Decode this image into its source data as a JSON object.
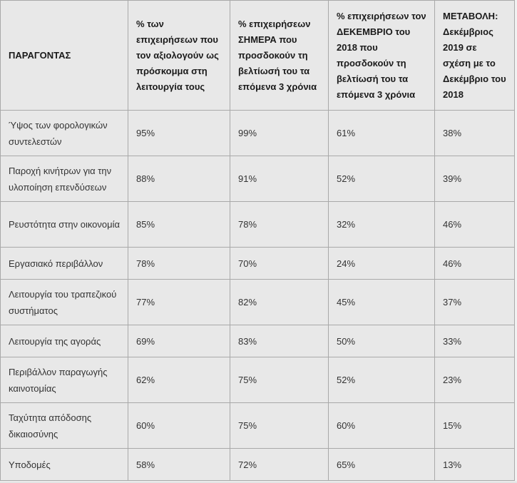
{
  "colors": {
    "cell_background": "#e8e8e8",
    "border": "#a9a9a9",
    "outer_border": "#9b9b9b",
    "header_text": "#1a1a1a",
    "body_text": "#333333",
    "page_background": "#f2f2f2"
  },
  "chart_data": {
    "type": "table",
    "columns": [
      "ΠΑΡΑΓΟΝΤΑΣ",
      "% των επιχειρήσεων που τον αξιολογούν ως πρόσκομμα στη λειτουργία τους",
      "% επιχειρήσεων ΣΗΜΕΡΑ που προσδοκούν τη βελτίωσή του τα επόμενα 3 χρόνια",
      "% επιχειρήσεων τον ΔΕΚΕΜΒΡΙΟ του 2018 που προσδοκούν τη βελτίωσή του τα επόμενα 3 χρόνια",
      "ΜΕΤΑΒΟΛΗ: Δεκέμβριος 2019 σε σχέση με το Δεκέμβριο του 2018"
    ],
    "rows": [
      {
        "factor": "Ύψος των φορολογικών συντελεστών",
        "values": [
          "95%",
          "99%",
          "61%",
          "38%"
        ]
      },
      {
        "factor": "Παροχή κινήτρων για την υλοποίηση επενδύσεων",
        "values": [
          "88%",
          "91%",
          "52%",
          "39%"
        ]
      },
      {
        "factor": "Ρευστότητα στην οικονομία",
        "values": [
          "85%",
          "78%",
          "32%",
          "46%"
        ]
      },
      {
        "factor": "Εργασιακό περιβάλλον",
        "values": [
          "78%",
          "70%",
          "24%",
          "46%"
        ]
      },
      {
        "factor": "Λειτουργία του τραπεζικού συστήματος",
        "values": [
          "77%",
          "82%",
          "45%",
          "37%"
        ]
      },
      {
        "factor": "Λειτουργία της αγοράς",
        "values": [
          "69%",
          "83%",
          "50%",
          "33%"
        ]
      },
      {
        "factor": "Περιβάλλον παραγωγής καινοτομίας",
        "values": [
          "62%",
          "75%",
          "52%",
          "23%"
        ]
      },
      {
        "factor": "Ταχύτητα απόδοσης δικαιοσύνης",
        "values": [
          "60%",
          "75%",
          "60%",
          "15%"
        ]
      },
      {
        "factor": "Υποδομές",
        "values": [
          "58%",
          "72%",
          "65%",
          "13%"
        ]
      }
    ]
  }
}
